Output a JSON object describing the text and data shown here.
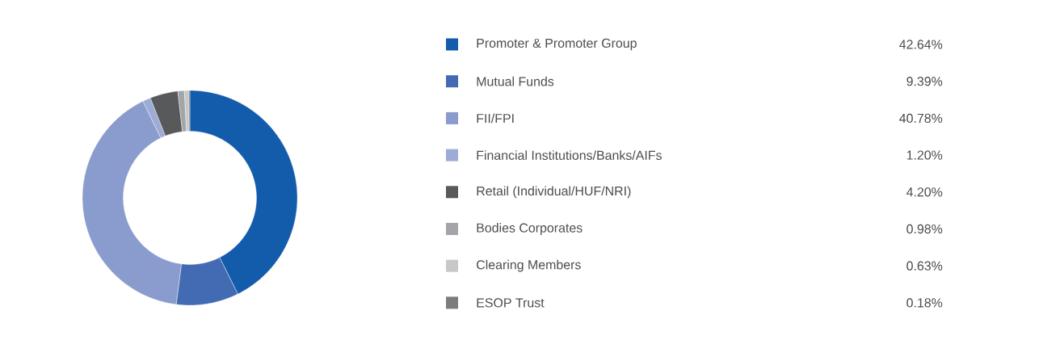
{
  "chart_data": {
    "type": "donut",
    "categories": [
      "Promoter & Promoter Group",
      "Mutual Funds",
      "FII/FPI",
      "Financial Institutions/Banks/AIFs",
      "Retail (Individual/HUF/NRI)",
      "Bodies Corporates",
      "Clearing Members",
      "ESOP Trust"
    ],
    "values": [
      42.64,
      9.39,
      40.78,
      1.2,
      4.2,
      0.98,
      0.63,
      0.18
    ],
    "value_labels": [
      "42.64%",
      "9.39%",
      "40.78%",
      "1.20%",
      "4.20%",
      "0.98%",
      "0.63%",
      "0.18%"
    ],
    "colors": [
      "#135bab",
      "#436bb3",
      "#8a9bcd",
      "#9dabd7",
      "#58595b",
      "#a4a5a8",
      "#c7c8ca",
      "#7b7c7f"
    ],
    "legend": "right"
  }
}
